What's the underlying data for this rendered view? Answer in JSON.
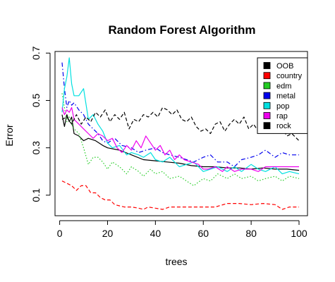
{
  "chart_data": {
    "type": "line",
    "title": "Random Forest Algorithm",
    "xlabel": "trees",
    "ylabel": "Error",
    "xlim": [
      1,
      100
    ],
    "ylim": [
      0.04,
      0.68
    ],
    "x_ticks": [
      0,
      20,
      40,
      60,
      80,
      100
    ],
    "y_ticks": [
      0.1,
      0.3,
      0.5,
      0.7
    ],
    "grid": false,
    "legend_position": "top-right",
    "series": [
      {
        "name": "OOB",
        "color": "#000000",
        "dash": "solid",
        "points": [
          [
            1,
            0.44
          ],
          [
            2,
            0.39
          ],
          [
            3,
            0.44
          ],
          [
            4,
            0.41
          ],
          [
            5,
            0.43
          ],
          [
            6,
            0.36
          ],
          [
            8,
            0.35
          ],
          [
            10,
            0.33
          ],
          [
            12,
            0.34
          ],
          [
            15,
            0.33
          ],
          [
            18,
            0.31
          ],
          [
            20,
            0.3
          ],
          [
            25,
            0.29
          ],
          [
            30,
            0.27
          ],
          [
            35,
            0.25
          ],
          [
            40,
            0.245
          ],
          [
            45,
            0.24
          ],
          [
            50,
            0.235
          ],
          [
            55,
            0.225
          ],
          [
            60,
            0.22
          ],
          [
            65,
            0.22
          ],
          [
            70,
            0.215
          ],
          [
            75,
            0.215
          ],
          [
            80,
            0.21
          ],
          [
            85,
            0.215
          ],
          [
            90,
            0.21
          ],
          [
            95,
            0.21
          ],
          [
            100,
            0.205
          ]
        ]
      },
      {
        "name": "country",
        "color": "#ff0000",
        "dash": "dashed",
        "points": [
          [
            1,
            0.16
          ],
          [
            3,
            0.15
          ],
          [
            5,
            0.14
          ],
          [
            7,
            0.12
          ],
          [
            9,
            0.14
          ],
          [
            11,
            0.14
          ],
          [
            13,
            0.11
          ],
          [
            15,
            0.11
          ],
          [
            17,
            0.09
          ],
          [
            19,
            0.08
          ],
          [
            21,
            0.08
          ],
          [
            23,
            0.06
          ],
          [
            25,
            0.055
          ],
          [
            27,
            0.05
          ],
          [
            30,
            0.05
          ],
          [
            33,
            0.045
          ],
          [
            35,
            0.04
          ],
          [
            37,
            0.05
          ],
          [
            40,
            0.045
          ],
          [
            43,
            0.04
          ],
          [
            46,
            0.05
          ],
          [
            50,
            0.05
          ],
          [
            55,
            0.05
          ],
          [
            60,
            0.05
          ],
          [
            65,
            0.05
          ],
          [
            70,
            0.065
          ],
          [
            75,
            0.065
          ],
          [
            80,
            0.06
          ],
          [
            85,
            0.065
          ],
          [
            90,
            0.06
          ],
          [
            93,
            0.04
          ],
          [
            96,
            0.05
          ],
          [
            100,
            0.05
          ]
        ]
      },
      {
        "name": "edm",
        "color": "#22cc22",
        "dash": "dotted",
        "points": [
          [
            1,
            0.53
          ],
          [
            2,
            0.47
          ],
          [
            3,
            0.41
          ],
          [
            4,
            0.43
          ],
          [
            5,
            0.4
          ],
          [
            6,
            0.38
          ],
          [
            8,
            0.36
          ],
          [
            10,
            0.3
          ],
          [
            12,
            0.23
          ],
          [
            14,
            0.26
          ],
          [
            16,
            0.26
          ],
          [
            18,
            0.24
          ],
          [
            20,
            0.21
          ],
          [
            22,
            0.24
          ],
          [
            25,
            0.22
          ],
          [
            28,
            0.19
          ],
          [
            30,
            0.22
          ],
          [
            33,
            0.2
          ],
          [
            35,
            0.18
          ],
          [
            38,
            0.21
          ],
          [
            40,
            0.19
          ],
          [
            43,
            0.2
          ],
          [
            46,
            0.17
          ],
          [
            50,
            0.18
          ],
          [
            53,
            0.16
          ],
          [
            56,
            0.14
          ],
          [
            60,
            0.17
          ],
          [
            63,
            0.16
          ],
          [
            66,
            0.19
          ],
          [
            70,
            0.17
          ],
          [
            73,
            0.19
          ],
          [
            76,
            0.17
          ],
          [
            80,
            0.18
          ],
          [
            83,
            0.16
          ],
          [
            86,
            0.17
          ],
          [
            90,
            0.18
          ],
          [
            93,
            0.16
          ],
          [
            96,
            0.18
          ],
          [
            100,
            0.17
          ]
        ]
      },
      {
        "name": "metal",
        "color": "#0000ee",
        "dash": "dashdot",
        "points": [
          [
            1,
            0.66
          ],
          [
            2,
            0.55
          ],
          [
            3,
            0.47
          ],
          [
            4,
            0.5
          ],
          [
            5,
            0.48
          ],
          [
            6,
            0.49
          ],
          [
            8,
            0.46
          ],
          [
            10,
            0.44
          ],
          [
            12,
            0.4
          ],
          [
            14,
            0.38
          ],
          [
            16,
            0.36
          ],
          [
            18,
            0.33
          ],
          [
            20,
            0.32
          ],
          [
            23,
            0.34
          ],
          [
            26,
            0.31
          ],
          [
            30,
            0.3
          ],
          [
            33,
            0.28
          ],
          [
            36,
            0.29
          ],
          [
            40,
            0.3
          ],
          [
            43,
            0.28
          ],
          [
            46,
            0.27
          ],
          [
            50,
            0.26
          ],
          [
            53,
            0.25
          ],
          [
            56,
            0.24
          ],
          [
            60,
            0.26
          ],
          [
            63,
            0.27
          ],
          [
            66,
            0.24
          ],
          [
            70,
            0.24
          ],
          [
            73,
            0.22
          ],
          [
            76,
            0.25
          ],
          [
            80,
            0.26
          ],
          [
            83,
            0.27
          ],
          [
            86,
            0.29
          ],
          [
            90,
            0.26
          ],
          [
            93,
            0.28
          ],
          [
            96,
            0.27
          ],
          [
            100,
            0.27
          ]
        ]
      },
      {
        "name": "pop",
        "color": "#00e0e0",
        "dash": "solid",
        "points": [
          [
            1,
            0.45
          ],
          [
            2,
            0.55
          ],
          [
            3,
            0.6
          ],
          [
            4,
            0.68
          ],
          [
            5,
            0.57
          ],
          [
            6,
            0.52
          ],
          [
            8,
            0.52
          ],
          [
            10,
            0.55
          ],
          [
            12,
            0.42
          ],
          [
            14,
            0.44
          ],
          [
            16,
            0.4
          ],
          [
            18,
            0.37
          ],
          [
            20,
            0.32
          ],
          [
            22,
            0.3
          ],
          [
            25,
            0.31
          ],
          [
            28,
            0.27
          ],
          [
            30,
            0.28
          ],
          [
            33,
            0.27
          ],
          [
            35,
            0.26
          ],
          [
            38,
            0.28
          ],
          [
            40,
            0.25
          ],
          [
            43,
            0.24
          ],
          [
            46,
            0.26
          ],
          [
            50,
            0.22
          ],
          [
            53,
            0.23
          ],
          [
            56,
            0.24
          ],
          [
            60,
            0.2
          ],
          [
            63,
            0.21
          ],
          [
            66,
            0.22
          ],
          [
            70,
            0.2
          ],
          [
            73,
            0.22
          ],
          [
            76,
            0.2
          ],
          [
            80,
            0.23
          ],
          [
            83,
            0.21
          ],
          [
            86,
            0.2
          ],
          [
            90,
            0.22
          ],
          [
            93,
            0.19
          ],
          [
            96,
            0.2
          ],
          [
            100,
            0.19
          ]
        ]
      },
      {
        "name": "rap",
        "color": "#ee00ee",
        "dash": "solid",
        "points": [
          [
            1,
            0.47
          ],
          [
            2,
            0.44
          ],
          [
            3,
            0.46
          ],
          [
            4,
            0.45
          ],
          [
            5,
            0.47
          ],
          [
            6,
            0.42
          ],
          [
            8,
            0.4
          ],
          [
            10,
            0.38
          ],
          [
            12,
            0.36
          ],
          [
            14,
            0.34
          ],
          [
            16,
            0.36
          ],
          [
            18,
            0.35
          ],
          [
            20,
            0.33
          ],
          [
            22,
            0.34
          ],
          [
            24,
            0.3
          ],
          [
            26,
            0.28
          ],
          [
            28,
            0.31
          ],
          [
            30,
            0.29
          ],
          [
            32,
            0.33
          ],
          [
            34,
            0.3
          ],
          [
            36,
            0.35
          ],
          [
            38,
            0.32
          ],
          [
            40,
            0.29
          ],
          [
            42,
            0.31
          ],
          [
            44,
            0.27
          ],
          [
            46,
            0.29
          ],
          [
            48,
            0.25
          ],
          [
            50,
            0.27
          ],
          [
            52,
            0.25
          ],
          [
            55,
            0.24
          ],
          [
            58,
            0.23
          ],
          [
            60,
            0.21
          ],
          [
            62,
            0.21
          ],
          [
            65,
            0.22
          ],
          [
            68,
            0.2
          ],
          [
            70,
            0.22
          ],
          [
            73,
            0.2
          ],
          [
            76,
            0.21
          ],
          [
            80,
            0.21
          ],
          [
            83,
            0.2
          ],
          [
            86,
            0.22
          ],
          [
            90,
            0.22
          ],
          [
            95,
            0.22
          ],
          [
            100,
            0.22
          ]
        ]
      },
      {
        "name": "rock",
        "color": "#000000",
        "dash": "dashed",
        "points": [
          [
            1,
            0.42
          ],
          [
            3,
            0.43
          ],
          [
            5,
            0.4
          ],
          [
            7,
            0.44
          ],
          [
            9,
            0.4
          ],
          [
            11,
            0.43
          ],
          [
            13,
            0.41
          ],
          [
            15,
            0.45
          ],
          [
            17,
            0.43
          ],
          [
            19,
            0.46
          ],
          [
            21,
            0.41
          ],
          [
            23,
            0.44
          ],
          [
            25,
            0.42
          ],
          [
            27,
            0.45
          ],
          [
            29,
            0.38
          ],
          [
            31,
            0.42
          ],
          [
            33,
            0.41
          ],
          [
            35,
            0.44
          ],
          [
            37,
            0.43
          ],
          [
            39,
            0.45
          ],
          [
            41,
            0.43
          ],
          [
            43,
            0.47
          ],
          [
            45,
            0.46
          ],
          [
            47,
            0.44
          ],
          [
            49,
            0.46
          ],
          [
            51,
            0.42
          ],
          [
            53,
            0.41
          ],
          [
            55,
            0.43
          ],
          [
            57,
            0.39
          ],
          [
            59,
            0.37
          ],
          [
            61,
            0.38
          ],
          [
            63,
            0.36
          ],
          [
            65,
            0.4
          ],
          [
            67,
            0.41
          ],
          [
            69,
            0.37
          ],
          [
            71,
            0.4
          ],
          [
            73,
            0.42
          ],
          [
            75,
            0.4
          ],
          [
            77,
            0.43
          ],
          [
            79,
            0.38
          ],
          [
            81,
            0.4
          ],
          [
            83,
            0.37
          ],
          [
            85,
            0.39
          ],
          [
            87,
            0.41
          ],
          [
            89,
            0.36
          ],
          [
            91,
            0.39
          ],
          [
            93,
            0.38
          ],
          [
            95,
            0.35
          ],
          [
            97,
            0.36
          ],
          [
            100,
            0.33
          ]
        ]
      }
    ]
  }
}
